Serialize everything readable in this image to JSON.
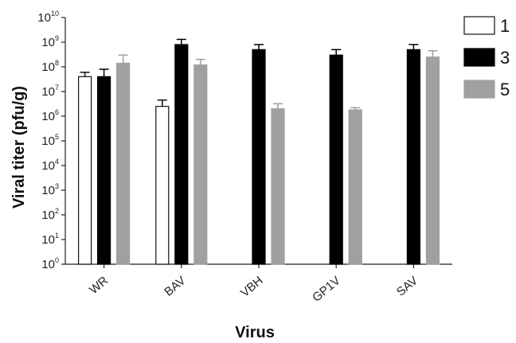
{
  "chart_data": {
    "type": "bar",
    "xlabel": "Virus",
    "ylabel": "Viral titer (pfu/g)",
    "yscale": "log",
    "ylim": [
      1,
      10000000000
    ],
    "y_tick_base": "10",
    "y_tick_exponents": [
      "0",
      "1",
      "2",
      "3",
      "4",
      "5",
      "6",
      "7",
      "8",
      "9",
      "10"
    ],
    "categories": [
      "WR",
      "BAV",
      "VBH",
      "GP1V",
      "SAV"
    ],
    "series": [
      {
        "name": "1",
        "color": "#ffffff",
        "values": [
          40000000,
          2500000,
          null,
          null,
          null
        ],
        "errors": [
          60000000,
          4500000,
          null,
          null,
          null
        ]
      },
      {
        "name": "3",
        "color": "#000000",
        "values": [
          40000000,
          800000000,
          500000000,
          300000000,
          500000000
        ],
        "errors": [
          80000000,
          1300000000,
          800000000,
          500000000,
          800000000
        ]
      },
      {
        "name": "5",
        "color": "#a0a0a3",
        "values": [
          140000000,
          120000000,
          2000000,
          1800000,
          250000000
        ],
        "errors": [
          300000000,
          200000000,
          3200000,
          2200000,
          450000000
        ]
      }
    ],
    "legend_position": "top-right",
    "grid": false
  }
}
